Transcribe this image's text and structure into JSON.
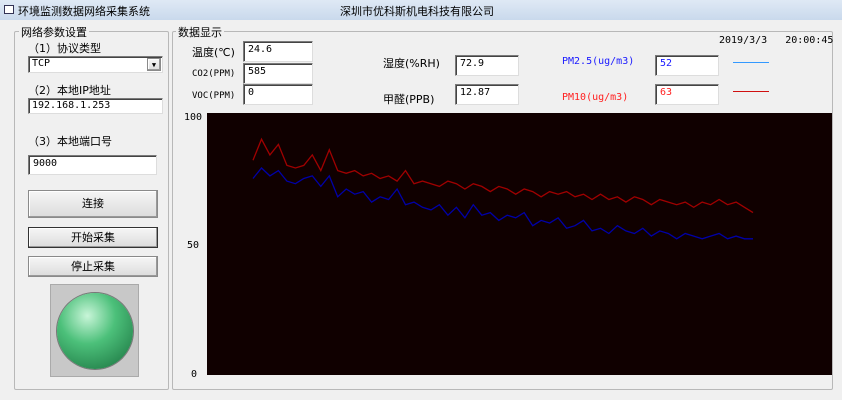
{
  "window": {
    "title": "环境监测数据网络采集系统",
    "company": "深圳市优科斯机电科技有限公司"
  },
  "network": {
    "group_label": "网络参数设置",
    "protocol_label": "（1）协议类型",
    "protocol_value": "TCP",
    "ip_label": "（2）本地IP地址",
    "ip_value": "192.168.1.253",
    "port_label": "（3）本地端口号",
    "port_value": "9000",
    "connect": "连接",
    "start": "开始采集",
    "stop": "停止采集",
    "indicator_color": "#3cb371"
  },
  "display": {
    "group_label": "数据显示",
    "datetime": "2019/3/3   20:00:45",
    "temp_label": "温度(℃)",
    "temp_value": "24.6",
    "co2_label": "CO2(PPM)",
    "co2_value": "585",
    "voc_label": "VOC(PPM)",
    "voc_value": "0",
    "hum_label": "湿度(%RH)",
    "hum_value": "72.9",
    "hcho_label": "甲醛(PPB)",
    "hcho_value": "12.87",
    "pm25_label": "PM2.5(ug/m3)",
    "pm25_value": "52",
    "pm25_color": "#1a1aff",
    "pm25_line_color": "#3399ff",
    "pm10_label": "PM10(ug/m3)",
    "pm10_value": "63",
    "pm10_color": "#ff2020",
    "pm10_line_color": "#d01010"
  },
  "chart_data": {
    "type": "line",
    "ylim": [
      0,
      100
    ],
    "yticks": [
      "100",
      "50",
      "0"
    ],
    "background": "#100000",
    "grid": false,
    "series": [
      {
        "color": "#a00000",
        "values": [
          82,
          90,
          84,
          88,
          80,
          79,
          80,
          84,
          78,
          86,
          78,
          77,
          78,
          76,
          77,
          75,
          76,
          74,
          78,
          73,
          74,
          73,
          72,
          74,
          73,
          71,
          73,
          72,
          70,
          72,
          71,
          69,
          71,
          70,
          68,
          70,
          69,
          70,
          68,
          69,
          67,
          69,
          67,
          68,
          66,
          68,
          67,
          65,
          67,
          66,
          65,
          66,
          64,
          66,
          65,
          67,
          65,
          66,
          64,
          62
        ]
      },
      {
        "color": "#0000a8",
        "values": [
          75,
          79,
          76,
          78,
          74,
          73,
          75,
          76,
          72,
          76,
          68,
          71,
          69,
          70,
          66,
          68,
          67,
          71,
          65,
          66,
          64,
          63,
          65,
          61,
          64,
          60,
          65,
          61,
          62,
          59,
          61,
          60,
          62,
          57,
          59,
          58,
          60,
          56,
          57,
          59,
          55,
          56,
          54,
          57,
          55,
          54,
          56,
          53,
          55,
          54,
          52,
          54,
          53,
          52,
          53,
          54,
          52,
          53,
          52,
          52
        ]
      }
    ]
  }
}
